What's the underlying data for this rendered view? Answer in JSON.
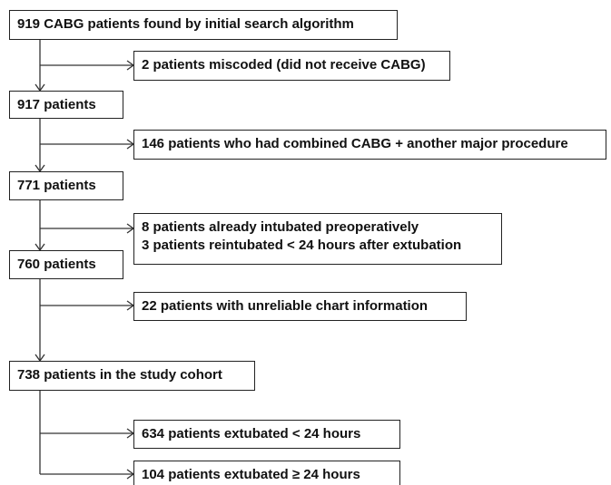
{
  "nodes": [
    {
      "label": "919 CABG patients found by initial search algorithm"
    },
    {
      "label": "917 patients"
    },
    {
      "label": "771 patients"
    },
    {
      "label": "760 patients"
    },
    {
      "label": "738 patients in the study cohort"
    }
  ],
  "exclusions": [
    {
      "lines": [
        "2 patients miscoded (did not receive CABG)"
      ]
    },
    {
      "lines": [
        "146 patients who had combined CABG + another major procedure"
      ]
    },
    {
      "lines": [
        "8 patients already intubated preoperatively",
        "3 patients reintubated < 24 hours after extubation"
      ]
    },
    {
      "lines": [
        "22 patients with unreliable chart information"
      ]
    }
  ],
  "outcomes": [
    {
      "label": "634 patients extubated < 24 hours"
    },
    {
      "label": "104 patients extubated ≥ 24 hours"
    }
  ]
}
